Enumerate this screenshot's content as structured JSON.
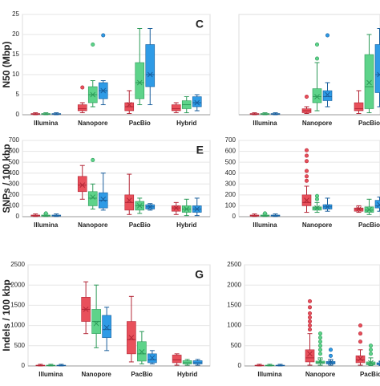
{
  "chart_data": [
    {
      "type": "box",
      "ylabel": "N50 (Mbp)",
      "label": "C",
      "categories": [
        "Illumina",
        "Nanopore",
        "PacBio",
        "Hybrid"
      ],
      "ylim": [
        0,
        25
      ],
      "yticks": [
        0,
        5,
        10,
        15,
        20,
        25
      ],
      "series": [
        {
          "color": "#e8505b",
          "boxes": [
            [
              0,
              0.1,
              0.2,
              0.3,
              0.5
            ],
            [
              0.5,
              1,
              1.5,
              2.5,
              3
            ],
            [
              0.3,
              1,
              2,
              3,
              6
            ],
            [
              0.5,
              1,
              1.5,
              2.5,
              3
            ]
          ],
          "means": [
            null,
            null,
            2.5,
            null
          ],
          "outliers": [
            [],
            [
              6.8
            ],
            [],
            []
          ]
        },
        {
          "color": "#5ed38a",
          "boxes": [
            [
              0,
              0.1,
              0.2,
              0.3,
              0.5
            ],
            [
              2,
              3,
              5,
              7,
              8.5
            ],
            [
              2.5,
              4,
              8,
              13,
              21.5
            ],
            [
              0.5,
              1.5,
              2.5,
              3.5,
              4.5
            ]
          ],
          "means": [
            null,
            5,
            8,
            null
          ],
          "outliers": [
            [],
            [
              17.5
            ],
            [],
            []
          ]
        },
        {
          "color": "#2f9be6",
          "boxes": [
            [
              0,
              0.1,
              0.2,
              0.3,
              0.5
            ],
            [
              2.5,
              4,
              6,
              8,
              8.5
            ],
            [
              2.5,
              7,
              10,
              17.5,
              21.5
            ],
            [
              1,
              2,
              3,
              4.5,
              5
            ]
          ],
          "means": [
            null,
            6,
            10,
            3
          ],
          "outliers": [
            [],
            [
              19.8
            ],
            [],
            []
          ]
        }
      ]
    },
    {
      "type": "box",
      "categories": [
        "Illumina",
        "Nanopore",
        "PacBio"
      ],
      "ylim": [
        0,
        25
      ],
      "series": [
        {
          "color": "#e8505b",
          "boxes": [
            [
              0,
              0.1,
              0.2,
              0.3,
              0.5
            ],
            [
              0.3,
              0.5,
              1,
              1.5,
              2
            ],
            [
              0.3,
              1,
              1.5,
              3,
              6
            ]
          ],
          "means": [
            null,
            null,
            null
          ],
          "outliers": [
            [],
            [
              4.5
            ],
            []
          ]
        },
        {
          "color": "#5ed38a",
          "boxes": [
            [
              0,
              0.1,
              0.2,
              0.3,
              0.5
            ],
            [
              1,
              3,
              4.5,
              6.5,
              13
            ],
            [
              0.5,
              1.5,
              7,
              15,
              20
            ]
          ],
          "means": [
            null,
            4.5,
            8
          ],
          "outliers": [
            [],
            [
              14,
              17.5
            ],
            []
          ]
        },
        {
          "color": "#2f9be6",
          "boxes": [
            [
              0,
              0.1,
              0.2,
              0.3,
              0.5
            ],
            [
              2,
              3.5,
              4.5,
              6,
              8
            ],
            [
              2,
              5.5,
              10,
              17.5,
              21.5
            ]
          ],
          "means": [
            null,
            5,
            10
          ],
          "outliers": [
            [],
            [
              19.8
            ],
            []
          ]
        }
      ]
    },
    {
      "type": "box",
      "ylabel": "SNPs / 100 kbp",
      "label": "E",
      "categories": [
        "Illumina",
        "Nanopore",
        "PacBio",
        "Hybrid"
      ],
      "ylim": [
        0,
        700
      ],
      "yticks": [
        0,
        100,
        200,
        300,
        400,
        500,
        600,
        700
      ],
      "series": [
        {
          "color": "#e8505b",
          "boxes": [
            [
              2,
              5,
              8,
              15,
              25
            ],
            [
              160,
              230,
              290,
              370,
              470
            ],
            [
              20,
              60,
              130,
              200,
              390
            ],
            [
              20,
              50,
              80,
              100,
              130
            ]
          ],
          "means": [
            null,
            290,
            150,
            80
          ],
          "outliers": [
            [],
            [],
            [],
            []
          ]
        },
        {
          "color": "#5ed38a",
          "boxes": [
            [
              2,
              5,
              8,
              15,
              25
            ],
            [
              70,
              100,
              170,
              230,
              300
            ],
            [
              30,
              60,
              100,
              140,
              170
            ],
            [
              10,
              40,
              70,
              100,
              160
            ]
          ],
          "means": [
            null,
            180,
            100,
            70
          ],
          "outliers": [
            [
              30
            ],
            [
              520
            ],
            [],
            []
          ]
        },
        {
          "color": "#2f9be6",
          "boxes": [
            [
              2,
              5,
              8,
              15,
              25
            ],
            [
              60,
              80,
              150,
              220,
              400
            ],
            [
              60,
              70,
              90,
              110,
              120
            ],
            [
              10,
              40,
              70,
              100,
              170
            ]
          ],
          "means": [
            null,
            160,
            90,
            70
          ],
          "outliers": [
            [],
            [],
            [],
            []
          ]
        }
      ]
    },
    {
      "type": "box",
      "categories": [
        "Illumina",
        "Nanopore",
        "PacBio"
      ],
      "ylim": [
        0,
        700
      ],
      "yticks": [
        0,
        100,
        200,
        300,
        400,
        500,
        600,
        700
      ],
      "series": [
        {
          "color": "#e8505b",
          "boxes": [
            [
              2,
              5,
              8,
              15,
              25
            ],
            [
              40,
              100,
              130,
              200,
              280
            ],
            [
              40,
              50,
              70,
              80,
              100
            ]
          ],
          "means": [
            null,
            150,
            70
          ],
          "outliers": [
            [],
            [
              330,
              370,
              420,
              510,
              560,
              610
            ],
            []
          ]
        },
        {
          "color": "#5ed38a",
          "boxes": [
            [
              2,
              5,
              8,
              15,
              25
            ],
            [
              40,
              60,
              80,
              90,
              130
            ],
            [
              20,
              40,
              60,
              90,
              160
            ]
          ],
          "means": [
            null,
            80,
            65
          ],
          "outliers": [
            [
              30
            ],
            [
              160,
              190
            ],
            []
          ]
        },
        {
          "color": "#2f9be6",
          "boxes": [
            [
              2,
              5,
              8,
              15,
              25
            ],
            [
              50,
              70,
              90,
              110,
              170
            ],
            [
              50,
              80,
              100,
              150,
              180
            ]
          ],
          "means": [
            null,
            90,
            110
          ],
          "outliers": [
            [],
            [],
            []
          ]
        }
      ]
    },
    {
      "type": "box",
      "ylabel": "Indels / 100 kbp",
      "label": "G",
      "categories": [
        "Illumina",
        "Nanopore",
        "PacBio",
        "Hybrid"
      ],
      "ylim": [
        0,
        2500
      ],
      "yticks": [
        0,
        500,
        1000,
        1500,
        2000,
        2500
      ],
      "series": [
        {
          "color": "#e8505b",
          "boxes": [
            [
              0,
              5,
              10,
              20,
              40
            ],
            [
              800,
              1100,
              1400,
              1700,
              2080
            ],
            [
              100,
              300,
              650,
              1100,
              1720
            ],
            [
              20,
              80,
              150,
              270,
              300
            ]
          ],
          "means": [
            null,
            1400,
            700,
            null
          ],
          "outliers": [
            [],
            [],
            [],
            []
          ]
        },
        {
          "color": "#5ed38a",
          "boxes": [
            [
              0,
              5,
              10,
              20,
              40
            ],
            [
              450,
              800,
              1100,
              1400,
              2000
            ],
            [
              50,
              120,
              300,
              600,
              850
            ],
            [
              20,
              50,
              80,
              130,
              160
            ]
          ],
          "means": [
            null,
            1050,
            350,
            null
          ],
          "outliers": [
            [],
            [],
            [],
            []
          ]
        },
        {
          "color": "#2f9be6",
          "boxes": [
            [
              0,
              5,
              10,
              20,
              40
            ],
            [
              380,
              700,
              900,
              1250,
              1450
            ],
            [
              50,
              80,
              150,
              300,
              380
            ],
            [
              20,
              50,
              80,
              130,
              160
            ]
          ],
          "means": [
            null,
            950,
            200,
            null
          ],
          "outliers": [
            [],
            [],
            [],
            []
          ]
        }
      ]
    },
    {
      "type": "box",
      "categories": [
        "Illumina",
        "Nanopore",
        "PacBio"
      ],
      "ylim": [
        0,
        2500
      ],
      "yticks": [
        0,
        500,
        1000,
        1500,
        2000,
        2500
      ],
      "series": [
        {
          "color": "#e8505b",
          "boxes": [
            [
              0,
              5,
              10,
              20,
              40
            ],
            [
              20,
              100,
              200,
              400,
              800
            ],
            [
              20,
              80,
              150,
              250,
              400
            ]
          ],
          "means": [
            null,
            300,
            180
          ],
          "outliers": [
            [],
            [
              900,
              1000,
              1100,
              1200,
              1300,
              1450,
              1600
            ],
            [
              600,
              800,
              1000
            ]
          ]
        },
        {
          "color": "#5ed38a",
          "boxes": [
            [
              0,
              5,
              10,
              20,
              40
            ],
            [
              20,
              60,
              80,
              120,
              200
            ],
            [
              10,
              30,
              60,
              100,
              200
            ]
          ],
          "means": [
            null,
            120,
            80
          ],
          "outliers": [
            [],
            [
              300,
              400,
              500,
              600,
              700,
              800
            ],
            [
              300,
              400,
              500
            ]
          ]
        },
        {
          "color": "#2f9be6",
          "boxes": [
            [
              0,
              5,
              10,
              20,
              40
            ],
            [
              20,
              50,
              80,
              110,
              160
            ],
            [
              10,
              30,
              50,
              80,
              120
            ]
          ],
          "means": [
            null,
            90,
            60
          ],
          "outliers": [
            [],
            [
              250,
              400
            ],
            []
          ]
        }
      ]
    }
  ]
}
